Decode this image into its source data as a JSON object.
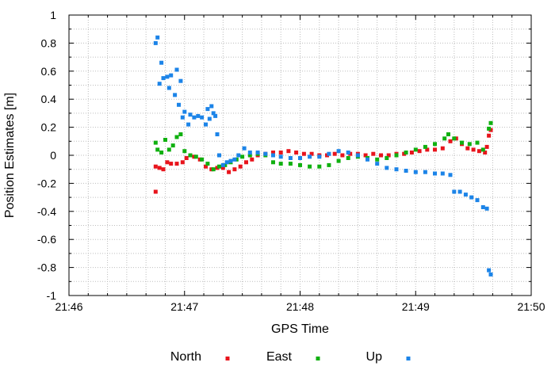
{
  "chart_data": {
    "type": "scatter",
    "title": "",
    "xlabel": "GPS Time",
    "ylabel": "Position Estimates [m]",
    "xlim": [
      "21:46",
      "21:50"
    ],
    "ylim": [
      -1,
      1
    ],
    "x_ticks": [
      "21:46",
      "21:47",
      "21:48",
      "21:49",
      "21:50"
    ],
    "y_ticks": [
      "-1",
      "-0.8",
      "-0.6",
      "-0.4",
      "-0.2",
      "0",
      "0.2",
      "0.4",
      "0.6",
      "0.8",
      "1"
    ],
    "grid": true,
    "legend_position": "bottom",
    "series": [
      {
        "name": "North",
        "color": "#e8141c",
        "points": [
          [
            "21:46:45",
            -0.26
          ],
          [
            "21:46:45",
            -0.08
          ],
          [
            "21:46:47",
            -0.09
          ],
          [
            "21:46:49",
            -0.1
          ],
          [
            "21:46:51",
            -0.05
          ],
          [
            "21:46:53",
            -0.06
          ],
          [
            "21:46:56",
            -0.06
          ],
          [
            "21:46:59",
            -0.05
          ],
          [
            "21:47:01",
            -0.02
          ],
          [
            "21:47:05",
            -0.01
          ],
          [
            "21:47:08",
            -0.03
          ],
          [
            "21:47:11",
            -0.08
          ],
          [
            "21:47:14",
            -0.1
          ],
          [
            "21:47:17",
            -0.09
          ],
          [
            "21:47:20",
            -0.09
          ],
          [
            "21:47:23",
            -0.12
          ],
          [
            "21:47:26",
            -0.1
          ],
          [
            "21:47:29",
            -0.08
          ],
          [
            "21:47:32",
            -0.05
          ],
          [
            "21:47:35",
            -0.03
          ],
          [
            "21:47:38",
            0.0
          ],
          [
            "21:47:42",
            0.01
          ],
          [
            "21:47:46",
            0.02
          ],
          [
            "21:47:50",
            0.02
          ],
          [
            "21:47:54",
            0.03
          ],
          [
            "21:47:58",
            0.02
          ],
          [
            "21:48:02",
            0.01
          ],
          [
            "21:48:06",
            0.01
          ],
          [
            "21:48:10",
            0.0
          ],
          [
            "21:48:14",
            0.0
          ],
          [
            "21:48:18",
            0.01
          ],
          [
            "21:48:22",
            0.0
          ],
          [
            "21:48:26",
            0.01
          ],
          [
            "21:48:30",
            0.01
          ],
          [
            "21:48:34",
            0.0
          ],
          [
            "21:48:38",
            0.01
          ],
          [
            "21:48:42",
            0.0
          ],
          [
            "21:48:46",
            0.0
          ],
          [
            "21:48:50",
            0.01
          ],
          [
            "21:48:54",
            0.01
          ],
          [
            "21:48:58",
            0.02
          ],
          [
            "21:49:02",
            0.03
          ],
          [
            "21:49:06",
            0.04
          ],
          [
            "21:49:10",
            0.04
          ],
          [
            "21:49:14",
            0.05
          ],
          [
            "21:49:18",
            0.1
          ],
          [
            "21:49:21",
            0.12
          ],
          [
            "21:49:24",
            0.08
          ],
          [
            "21:49:27",
            0.05
          ],
          [
            "21:49:30",
            0.04
          ],
          [
            "21:49:33",
            0.03
          ],
          [
            "21:49:36",
            0.02
          ],
          [
            "21:49:37",
            0.06
          ],
          [
            "21:49:38",
            0.14
          ],
          [
            "21:49:39",
            0.18
          ]
        ]
      },
      {
        "name": "East",
        "color": "#10b010",
        "points": [
          [
            "21:46:45",
            0.09
          ],
          [
            "21:46:46",
            0.04
          ],
          [
            "21:46:48",
            0.02
          ],
          [
            "21:46:50",
            0.11
          ],
          [
            "21:46:52",
            0.04
          ],
          [
            "21:46:54",
            0.07
          ],
          [
            "21:46:56",
            0.13
          ],
          [
            "21:46:58",
            0.15
          ],
          [
            "21:47:00",
            0.03
          ],
          [
            "21:47:03",
            0.0
          ],
          [
            "21:47:06",
            -0.01
          ],
          [
            "21:47:09",
            -0.03
          ],
          [
            "21:47:12",
            -0.06
          ],
          [
            "21:47:15",
            -0.1
          ],
          [
            "21:47:18",
            -0.08
          ],
          [
            "21:47:21",
            -0.07
          ],
          [
            "21:47:24",
            -0.05
          ],
          [
            "21:47:27",
            -0.03
          ],
          [
            "21:47:30",
            -0.01
          ],
          [
            "21:47:34",
            0.0
          ],
          [
            "21:47:38",
            0.01
          ],
          [
            "21:47:42",
            0.0
          ],
          [
            "21:47:46",
            -0.05
          ],
          [
            "21:47:50",
            -0.06
          ],
          [
            "21:47:55",
            -0.06
          ],
          [
            "21:48:00",
            -0.07
          ],
          [
            "21:48:05",
            -0.08
          ],
          [
            "21:48:10",
            -0.08
          ],
          [
            "21:48:15",
            -0.07
          ],
          [
            "21:48:20",
            -0.04
          ],
          [
            "21:48:25",
            -0.02
          ],
          [
            "21:48:30",
            -0.01
          ],
          [
            "21:48:35",
            -0.02
          ],
          [
            "21:48:40",
            -0.03
          ],
          [
            "21:48:45",
            -0.02
          ],
          [
            "21:48:50",
            0.0
          ],
          [
            "21:48:55",
            0.02
          ],
          [
            "21:49:00",
            0.04
          ],
          [
            "21:49:05",
            0.06
          ],
          [
            "21:49:10",
            0.08
          ],
          [
            "21:49:15",
            0.12
          ],
          [
            "21:49:17",
            0.15
          ],
          [
            "21:49:20",
            0.12
          ],
          [
            "21:49:24",
            0.09
          ],
          [
            "21:49:28",
            0.08
          ],
          [
            "21:49:32",
            0.09
          ],
          [
            "21:49:35",
            0.04
          ],
          [
            "21:49:38",
            0.19
          ],
          [
            "21:49:39",
            0.23
          ]
        ]
      },
      {
        "name": "Up",
        "color": "#1c84e8",
        "points": [
          [
            "21:46:45",
            0.8
          ],
          [
            "21:46:46",
            0.84
          ],
          [
            "21:46:47",
            0.51
          ],
          [
            "21:46:48",
            0.66
          ],
          [
            "21:46:49",
            0.55
          ],
          [
            "21:46:51",
            0.56
          ],
          [
            "21:46:52",
            0.48
          ],
          [
            "21:46:53",
            0.57
          ],
          [
            "21:46:55",
            0.43
          ],
          [
            "21:46:56",
            0.61
          ],
          [
            "21:46:57",
            0.36
          ],
          [
            "21:46:58",
            0.53
          ],
          [
            "21:46:59",
            0.27
          ],
          [
            "21:47:00",
            0.31
          ],
          [
            "21:47:02",
            0.22
          ],
          [
            "21:47:03",
            0.29
          ],
          [
            "21:47:05",
            0.27
          ],
          [
            "21:47:07",
            0.28
          ],
          [
            "21:47:09",
            0.27
          ],
          [
            "21:47:11",
            0.22
          ],
          [
            "21:47:12",
            0.33
          ],
          [
            "21:47:13",
            0.26
          ],
          [
            "21:47:14",
            0.35
          ],
          [
            "21:47:15",
            0.3
          ],
          [
            "21:47:16",
            0.28
          ],
          [
            "21:47:17",
            0.15
          ],
          [
            "21:47:18",
            0.0
          ],
          [
            "21:47:20",
            -0.07
          ],
          [
            "21:47:22",
            -0.05
          ],
          [
            "21:47:24",
            -0.04
          ],
          [
            "21:47:26",
            -0.03
          ],
          [
            "21:47:28",
            0.0
          ],
          [
            "21:47:31",
            0.05
          ],
          [
            "21:47:34",
            0.02
          ],
          [
            "21:47:38",
            0.02
          ],
          [
            "21:47:42",
            0.01
          ],
          [
            "21:47:46",
            0.0
          ],
          [
            "21:47:50",
            -0.01
          ],
          [
            "21:47:55",
            -0.02
          ],
          [
            "21:48:00",
            -0.02
          ],
          [
            "21:48:05",
            -0.01
          ],
          [
            "21:48:10",
            -0.01
          ],
          [
            "21:48:15",
            0.01
          ],
          [
            "21:48:20",
            0.03
          ],
          [
            "21:48:25",
            0.02
          ],
          [
            "21:48:30",
            0.0
          ],
          [
            "21:48:35",
            -0.03
          ],
          [
            "21:48:40",
            -0.06
          ],
          [
            "21:48:45",
            -0.09
          ],
          [
            "21:48:50",
            -0.1
          ],
          [
            "21:48:55",
            -0.11
          ],
          [
            "21:49:00",
            -0.12
          ],
          [
            "21:49:05",
            -0.12
          ],
          [
            "21:49:10",
            -0.13
          ],
          [
            "21:49:14",
            -0.13
          ],
          [
            "21:49:18",
            -0.14
          ],
          [
            "21:49:20",
            -0.26
          ],
          [
            "21:49:23",
            -0.26
          ],
          [
            "21:49:26",
            -0.28
          ],
          [
            "21:49:29",
            -0.3
          ],
          [
            "21:49:32",
            -0.32
          ],
          [
            "21:49:35",
            -0.37
          ],
          [
            "21:49:37",
            -0.38
          ],
          [
            "21:49:38",
            -0.82
          ],
          [
            "21:49:39",
            -0.85
          ]
        ]
      }
    ]
  }
}
